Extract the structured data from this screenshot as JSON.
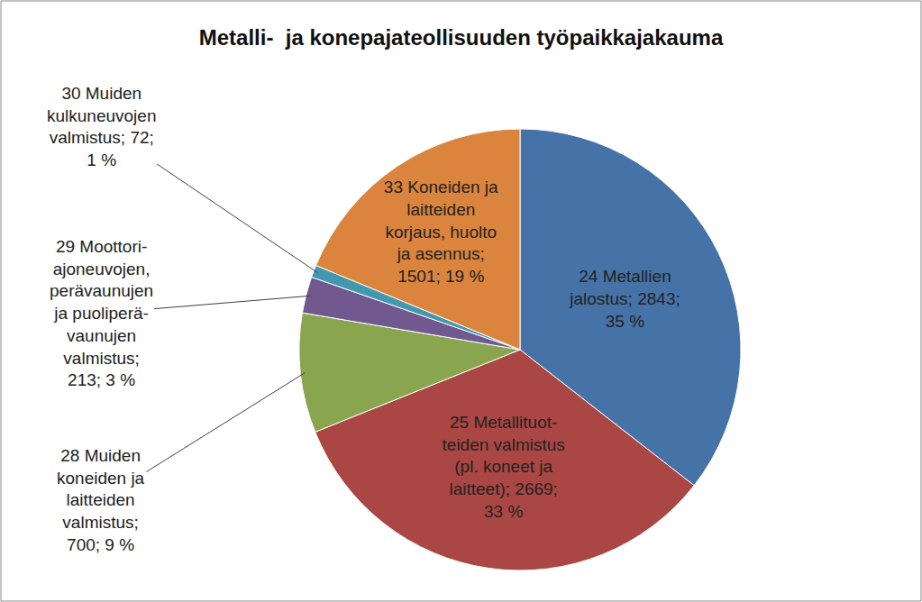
{
  "chart_data": {
    "type": "pie",
    "title": "Metalli-  ja konepajateollisuuden työpaikkajakauma",
    "categories": [
      "24 Metallien jalostus",
      "25 Metallituot-teiden valmistus (pl. koneet ja laitteet)",
      "28 Muiden koneiden ja laitteiden valmistus",
      "29 Moottori-ajoneuvojen, perävaunujen ja puoliperä-vaunujen valmistus",
      "30 Muiden kulkuneuvojen valmistus",
      "33 Koneiden ja laitteiden korjaus, huolto ja asennus"
    ],
    "values": [
      2843,
      2669,
      700,
      213,
      72,
      1501
    ],
    "value_labels": [
      "24 Metallien jalostus; 2843; 35 %",
      "25 Metallituot-teiden valmistus (pl. koneet ja laitteet); 2669; 33 %",
      "28 Muiden koneiden ja laitteiden valmistus; 700; 9 %",
      "29 Moottori-ajoneuvojen, perävaunujen ja puoliperä-vaunujen valmistus; 213; 3 %",
      "30 Muiden kulkuneuvojen valmistus; 72; 1 %",
      "33 Koneiden ja laitteiden korjaus, huolto ja asennus; 1501; 19 %"
    ],
    "colors": [
      "#4572a7",
      "#aa4643",
      "#89a54e",
      "#71588f",
      "#4198af",
      "#db843d"
    ],
    "data_labels": true
  }
}
